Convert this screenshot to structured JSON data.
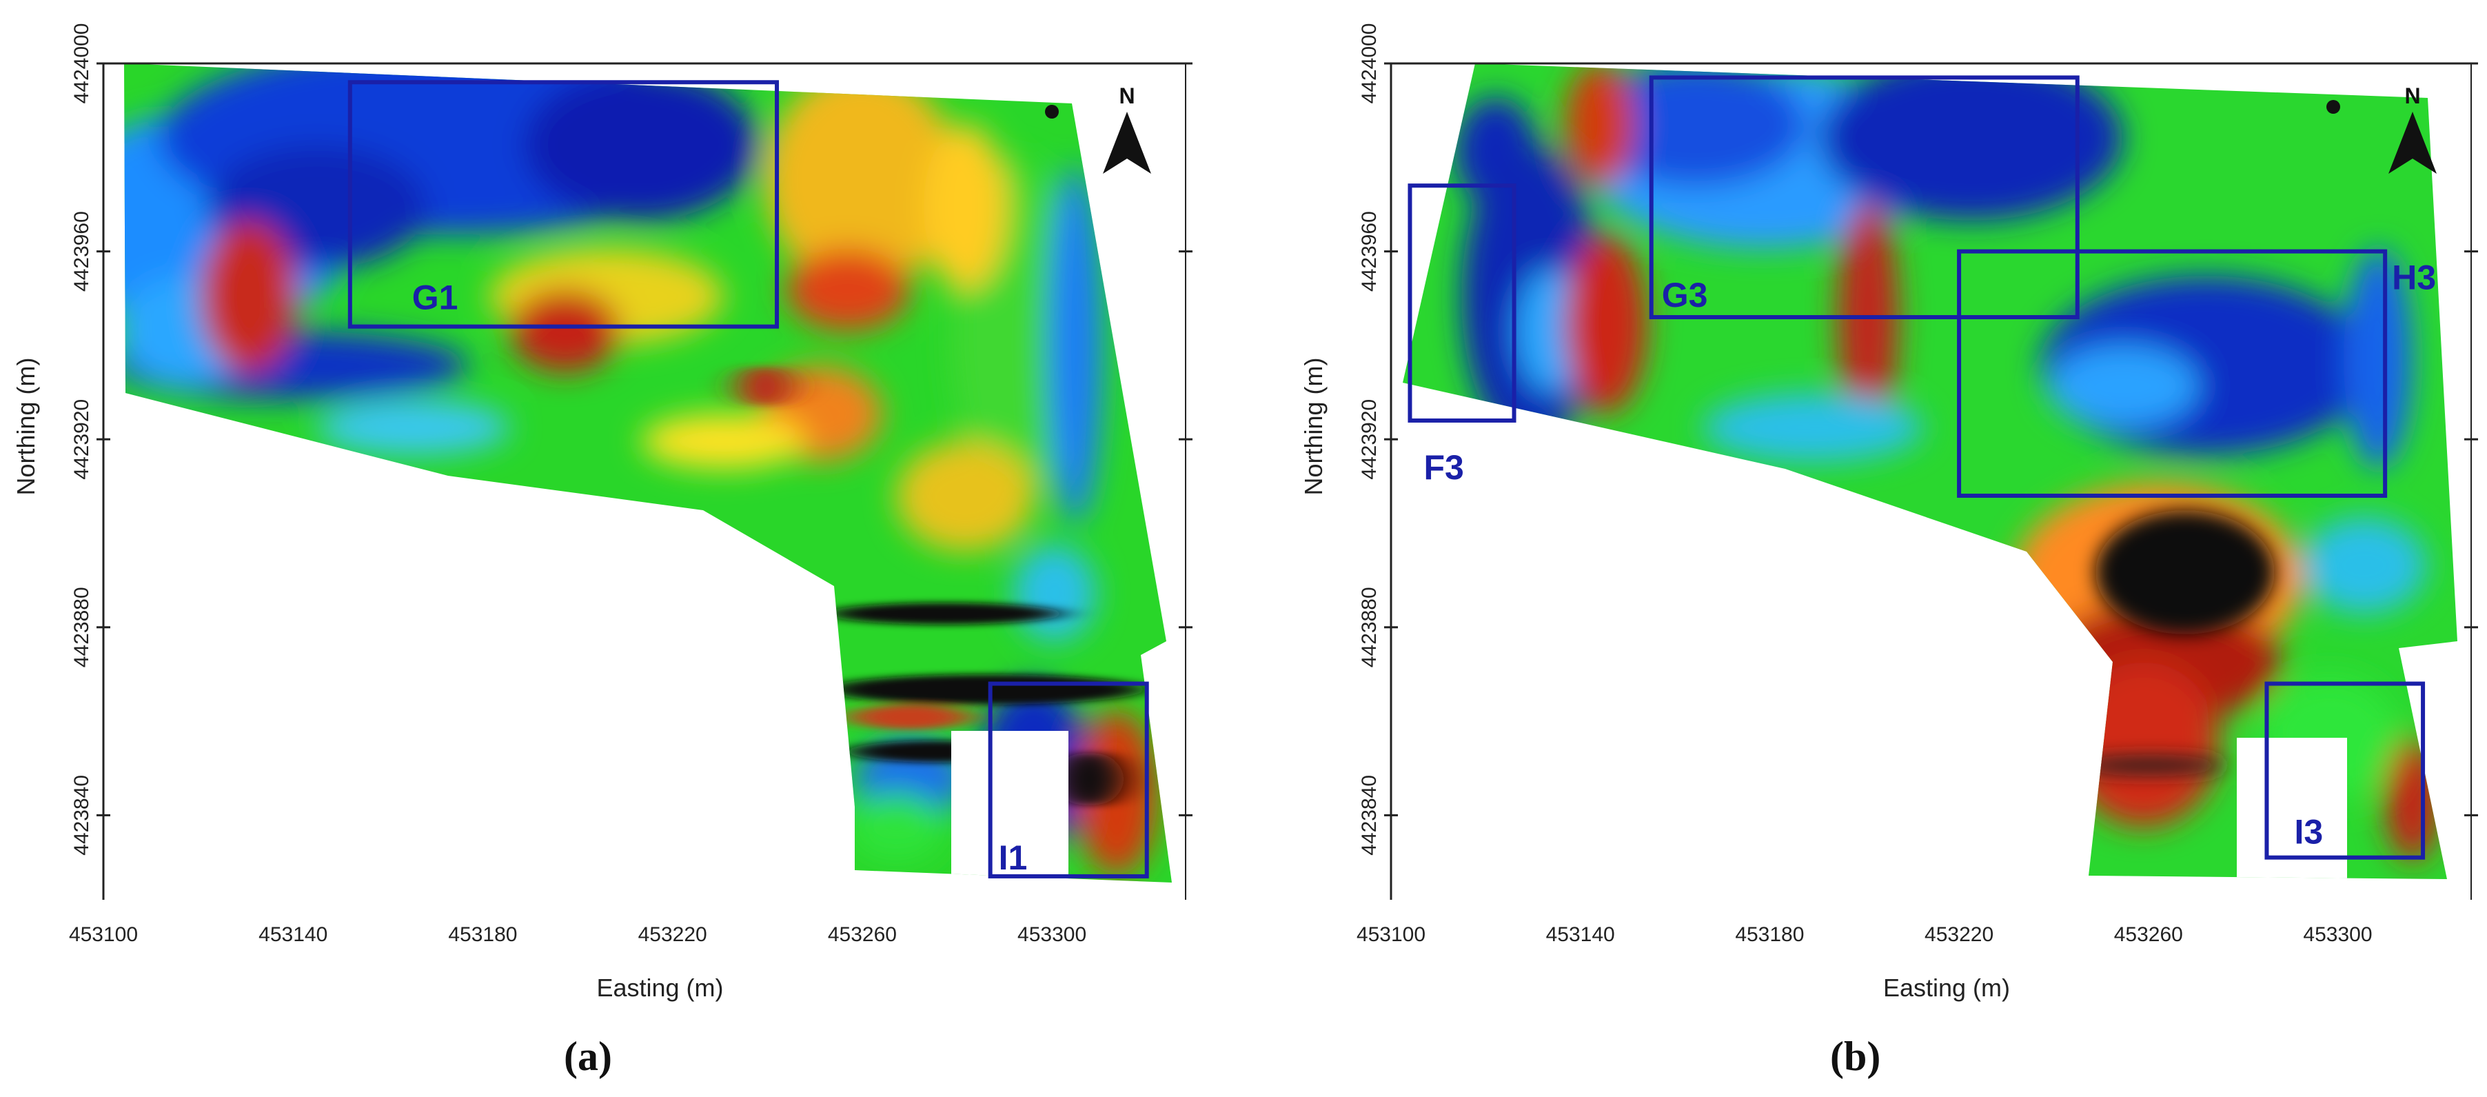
{
  "panels": [
    {
      "id": "a",
      "caption": "(a)",
      "xlabel": "Easting (m)",
      "ylabel": "Northing (m)",
      "xlim": [
        453100,
        453326
      ],
      "ylim": [
        4423822,
        4424000
      ],
      "x_ticks": [
        "453100",
        "453140",
        "453180",
        "453220",
        "453260",
        "453300"
      ],
      "y_ticks": [
        "4423840",
        "4423880",
        "4423920",
        "4423960",
        "4424000"
      ],
      "north_label": "N",
      "regions": [
        {
          "label": "G1",
          "x": [
            453152,
            453242
          ],
          "y": [
            4423944,
            4423996
          ]
        },
        {
          "label": "I1",
          "x": [
            453287,
            453320
          ],
          "y": [
            4423827,
            4423868
          ]
        }
      ]
    },
    {
      "id": "b",
      "caption": "(b)",
      "xlabel": "Easting (m)",
      "ylabel": "Northing (m)",
      "xlim": [
        453100,
        453326
      ],
      "ylim": [
        4423822,
        4424000
      ],
      "x_ticks": [
        "453100",
        "453140",
        "453180",
        "453220",
        "453260",
        "453300"
      ],
      "y_ticks": [
        "4423840",
        "4423880",
        "4423920",
        "4423960",
        "4424000"
      ],
      "north_label": "N",
      "regions": [
        {
          "label": "F3",
          "x": [
            453104,
            453126
          ],
          "y": [
            4423924,
            4423974
          ]
        },
        {
          "label": "G3",
          "x": [
            453155,
            453245
          ],
          "y": [
            4423946,
            4423997
          ]
        },
        {
          "label": "H3",
          "x": [
            453220,
            453310
          ],
          "y": [
            4423908,
            4423960
          ]
        },
        {
          "label": "I3",
          "x": [
            453285,
            453318
          ],
          "y": [
            4423831,
            4423868
          ]
        }
      ]
    }
  ]
}
